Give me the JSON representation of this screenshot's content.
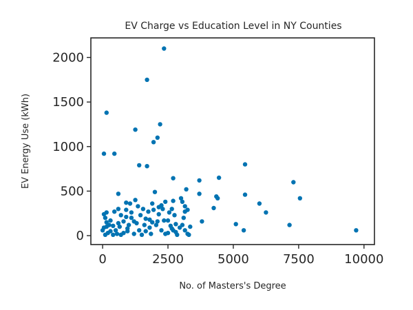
{
  "chart_data": {
    "type": "scatter",
    "title": "EV Charge vs Education Level in NY Counties",
    "xlabel": "No. of Masters's Degree",
    "ylabel": "EV Energy Use (kWh)",
    "xlim": [
      -450,
      10400
    ],
    "ylim": [
      -100,
      2220
    ],
    "xticks": [
      0,
      2500,
      5000,
      7500,
      10000
    ],
    "yticks": [
      0,
      500,
      1000,
      1500,
      2000
    ],
    "grid": false,
    "legend": "none",
    "color": "#0173b2",
    "points": [
      [
        2350,
        2100
      ],
      [
        1700,
        1750
      ],
      [
        150,
        1380
      ],
      [
        2200,
        1250
      ],
      [
        1250,
        1190
      ],
      [
        2100,
        1100
      ],
      [
        1950,
        1050
      ],
      [
        50,
        920
      ],
      [
        450,
        920
      ],
      [
        1400,
        790
      ],
      [
        1700,
        780
      ],
      [
        5450,
        800
      ],
      [
        2700,
        645
      ],
      [
        3700,
        620
      ],
      [
        4450,
        650
      ],
      [
        7300,
        600
      ],
      [
        3200,
        520
      ],
      [
        2000,
        490
      ],
      [
        600,
        470
      ],
      [
        3700,
        470
      ],
      [
        5450,
        460
      ],
      [
        4350,
        440
      ],
      [
        4400,
        420
      ],
      [
        7550,
        420
      ],
      [
        2400,
        380
      ],
      [
        2700,
        390
      ],
      [
        3050,
        380
      ],
      [
        3000,
        420
      ],
      [
        6000,
        360
      ],
      [
        900,
        370
      ],
      [
        1050,
        360
      ],
      [
        1250,
        400
      ],
      [
        1900,
        360
      ],
      [
        2250,
        340
      ],
      [
        2300,
        300
      ],
      [
        3150,
        330
      ],
      [
        3250,
        290
      ],
      [
        4250,
        310
      ],
      [
        6250,
        260
      ],
      [
        3150,
        270
      ],
      [
        2650,
        300
      ],
      [
        1550,
        300
      ],
      [
        1950,
        290
      ],
      [
        900,
        290
      ],
      [
        450,
        270
      ],
      [
        150,
        260
      ],
      [
        50,
        240
      ],
      [
        700,
        230
      ],
      [
        900,
        210
      ],
      [
        1100,
        200
      ],
      [
        1650,
        190
      ],
      [
        2100,
        160
      ],
      [
        2350,
        170
      ],
      [
        1900,
        150
      ],
      [
        2800,
        130
      ],
      [
        3050,
        120
      ],
      [
        3350,
        100
      ],
      [
        3800,
        160
      ],
      [
        5100,
        130
      ],
      [
        5400,
        60
      ],
      [
        7150,
        120
      ],
      [
        9700,
        60
      ],
      [
        2600,
        110
      ],
      [
        2700,
        60
      ],
      [
        2800,
        40
      ],
      [
        2500,
        30
      ],
      [
        2400,
        20
      ],
      [
        1800,
        90
      ],
      [
        1650,
        50
      ],
      [
        1400,
        60
      ],
      [
        1200,
        20
      ],
      [
        950,
        50
      ],
      [
        800,
        30
      ],
      [
        550,
        20
      ],
      [
        400,
        10
      ],
      [
        300,
        50
      ],
      [
        200,
        30
      ],
      [
        100,
        10
      ],
      [
        50,
        90
      ],
      [
        0,
        60
      ],
      [
        250,
        120
      ],
      [
        300,
        170
      ],
      [
        150,
        150
      ],
      [
        400,
        110
      ],
      [
        650,
        100
      ],
      [
        1000,
        120
      ],
      [
        1300,
        140
      ],
      [
        1600,
        120
      ],
      [
        2050,
        120
      ],
      [
        2250,
        60
      ],
      [
        2650,
        80
      ],
      [
        2950,
        90
      ],
      [
        3150,
        60
      ],
      [
        1450,
        230
      ],
      [
        1750,
        270
      ],
      [
        2150,
        240
      ],
      [
        1100,
        260
      ],
      [
        600,
        300
      ],
      [
        1200,
        160
      ],
      [
        800,
        160
      ],
      [
        500,
        60
      ],
      [
        700,
        10
      ],
      [
        1500,
        10
      ],
      [
        2850,
        10
      ],
      [
        3250,
        20
      ],
      [
        1850,
        20
      ],
      [
        100,
        200
      ],
      [
        2550,
        260
      ],
      [
        1350,
        330
      ],
      [
        2150,
        320
      ],
      [
        950,
        80
      ],
      [
        1800,
        180
      ],
      [
        2500,
        170
      ],
      [
        600,
        140
      ],
      [
        2750,
        230
      ],
      [
        3100,
        200
      ],
      [
        3300,
        10
      ],
      [
        150,
        100
      ]
    ]
  }
}
